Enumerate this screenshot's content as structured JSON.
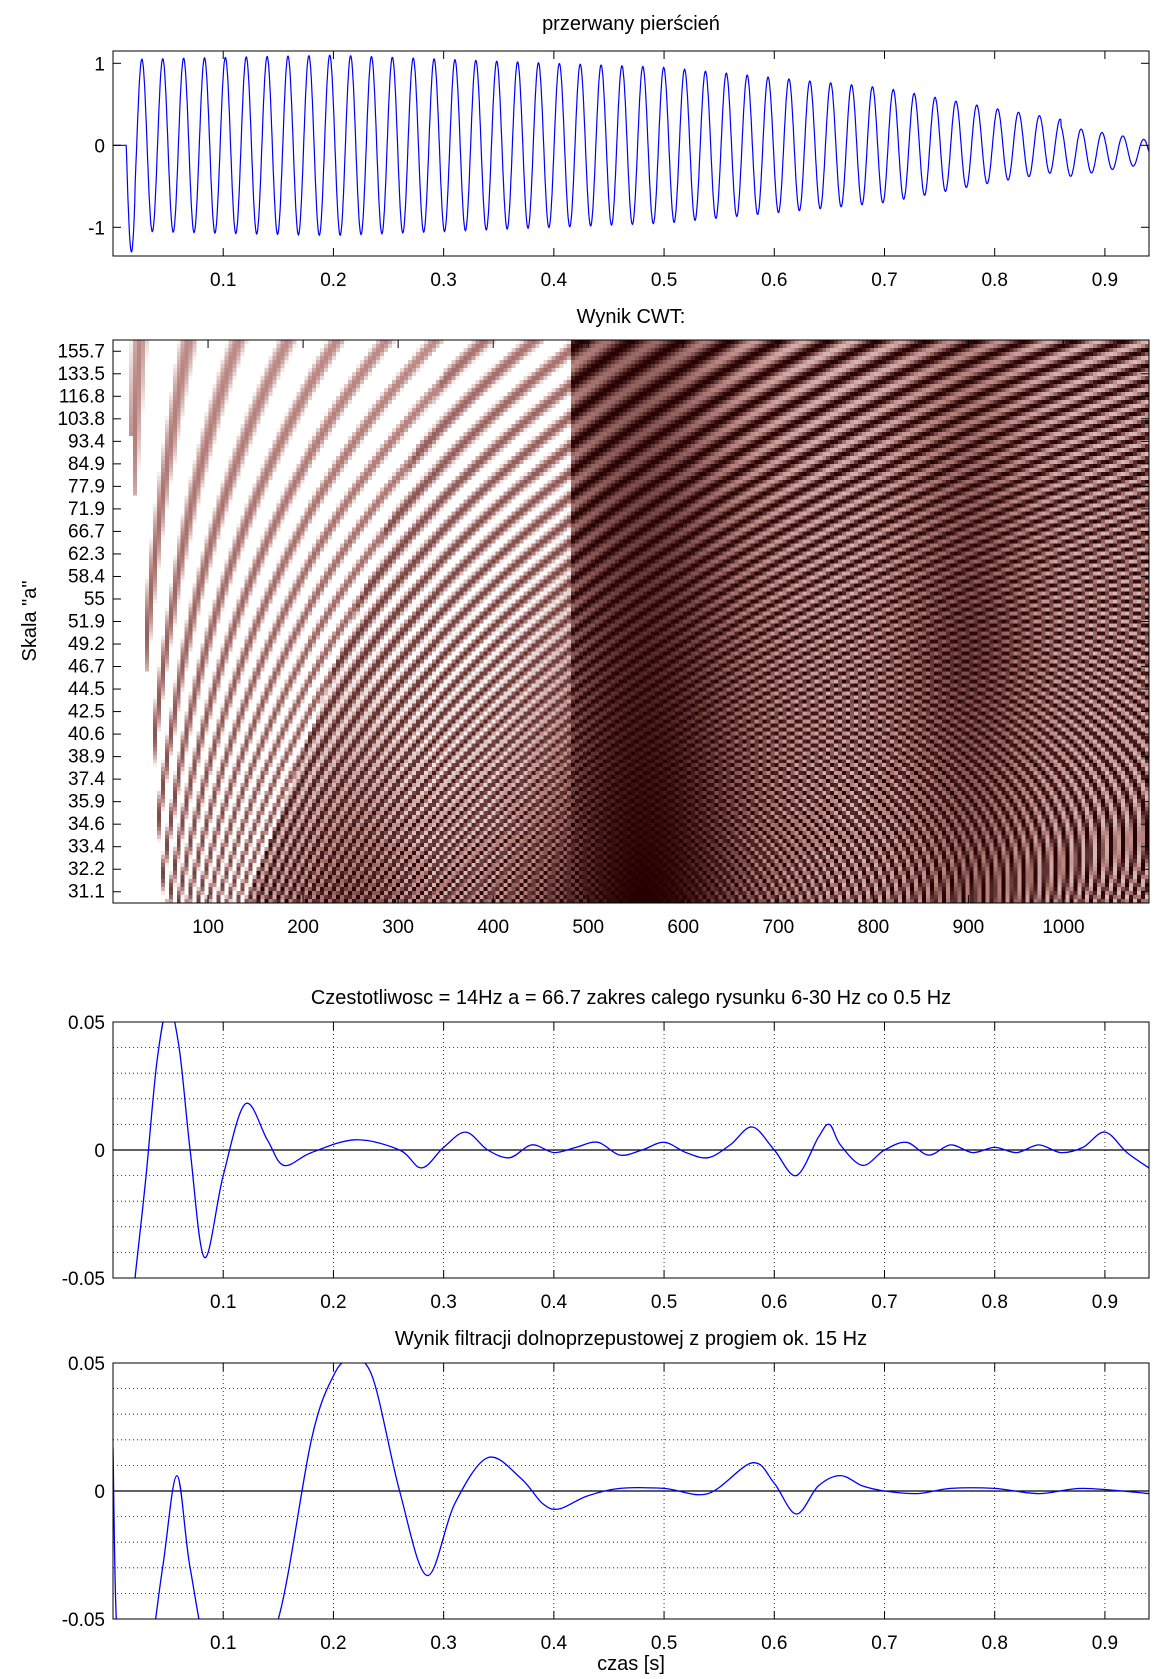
{
  "chart_data": [
    {
      "type": "line",
      "title": "przerwany pierścień",
      "xlabel": "",
      "ylabel": "",
      "xlim": [
        0.0,
        0.94
      ],
      "ylim": [
        -1.35,
        1.15
      ],
      "xticks": [
        0.1,
        0.2,
        0.3,
        0.4,
        0.5,
        0.6,
        0.7,
        0.8,
        0.9
      ],
      "xtick_labels": [
        "0.1",
        "0.2",
        "0.3",
        "0.4",
        "0.5",
        "0.6",
        "0.7",
        "0.8",
        "0.9"
      ],
      "yticks": [
        1,
        0,
        -1
      ],
      "ytick_labels": [
        "1",
        "0",
        "-1"
      ],
      "grid": false,
      "line_color": "#0000ff",
      "signal": {
        "description_points": [
          [
            0.0,
            0.0
          ],
          [
            0.01,
            0.0
          ],
          [
            0.015,
            -1.3
          ],
          [
            0.025,
            1.05
          ],
          [
            0.2,
            1.1
          ],
          [
            0.5,
            0.95
          ],
          [
            0.7,
            0.7
          ],
          [
            0.8,
            0.45
          ],
          [
            0.9,
            0.25
          ],
          [
            0.94,
            -0.1
          ]
        ],
        "cycles_in_range": 49
      }
    },
    {
      "type": "heatmap",
      "title": "Wynik CWT:",
      "xlabel": "",
      "ylabel": "Skala \"a\"",
      "xlim": [
        0,
        1090
      ],
      "xticks": [
        100,
        200,
        300,
        400,
        500,
        600,
        700,
        800,
        900,
        1000
      ],
      "xtick_labels": [
        "100",
        "200",
        "300",
        "400",
        "500",
        "600",
        "700",
        "800",
        "900",
        "1000"
      ],
      "ytick_labels": [
        "155.7",
        "133.5",
        "116.8",
        "103.8",
        "93.4",
        "84.9",
        "77.9",
        "71.9",
        "66.7",
        "62.3",
        "58.4",
        "55",
        "51.9",
        "49.2",
        "46.7",
        "44.5",
        "42.5",
        "40.6",
        "38.9",
        "37.4",
        "35.9",
        "34.6",
        "33.4",
        "32.2",
        "31.1"
      ],
      "colormap": "pink",
      "colors": {
        "dark": "#260000",
        "mid": "#b88480",
        "light": "#ffffff"
      }
    },
    {
      "type": "line",
      "title": "Czestotliwosc = 14Hz  a = 66.7 zakres calego rysunku 6-30 Hz co 0.5 Hz",
      "xlabel": "",
      "ylabel": "",
      "xlim": [
        0.0,
        0.94
      ],
      "ylim": [
        -0.05,
        0.05
      ],
      "xticks": [
        0.1,
        0.2,
        0.3,
        0.4,
        0.5,
        0.6,
        0.7,
        0.8,
        0.9
      ],
      "xtick_labels": [
        "0.1",
        "0.2",
        "0.3",
        "0.4",
        "0.5",
        "0.6",
        "0.7",
        "0.8",
        "0.9"
      ],
      "yticks": [
        0.05,
        0,
        -0.05
      ],
      "ytick_labels": [
        "0.05",
        "0",
        "-0.05"
      ],
      "grid": true,
      "line_color": "#0000ff",
      "zero_line_color": "#000000",
      "x": [
        0.02,
        0.03,
        0.04,
        0.05,
        0.06,
        0.07,
        0.083,
        0.1,
        0.12,
        0.14,
        0.155,
        0.18,
        0.22,
        0.26,
        0.28,
        0.3,
        0.32,
        0.34,
        0.36,
        0.38,
        0.4,
        0.42,
        0.44,
        0.46,
        0.48,
        0.5,
        0.52,
        0.54,
        0.56,
        0.58,
        0.6,
        0.62,
        0.64,
        0.65,
        0.66,
        0.68,
        0.7,
        0.72,
        0.74,
        0.76,
        0.78,
        0.8,
        0.82,
        0.84,
        0.86,
        0.88,
        0.9,
        0.92,
        0.94
      ],
      "y": [
        -0.05,
        -0.01,
        0.035,
        0.056,
        0.04,
        0.0,
        -0.042,
        -0.01,
        0.018,
        0.004,
        -0.006,
        -0.001,
        0.004,
        0.0,
        -0.007,
        0.001,
        0.007,
        0.0,
        -0.003,
        0.002,
        -0.001,
        0.001,
        0.003,
        -0.002,
        0.0,
        0.003,
        -0.001,
        -0.003,
        0.002,
        0.009,
        0.0,
        -0.01,
        0.005,
        0.01,
        0.002,
        -0.006,
        0.0,
        0.003,
        -0.002,
        0.002,
        -0.001,
        0.001,
        -0.001,
        0.002,
        -0.001,
        0.001,
        0.007,
        -0.001,
        -0.007
      ]
    },
    {
      "type": "line",
      "title": "Wynik filtracji dolnoprzepustowej z progiem ok. 15 Hz",
      "xlabel": "czas [s]",
      "ylabel": "",
      "xlim": [
        0.0,
        0.94
      ],
      "ylim": [
        -0.05,
        0.05
      ],
      "xticks": [
        0.1,
        0.2,
        0.3,
        0.4,
        0.5,
        0.6,
        0.7,
        0.8,
        0.9
      ],
      "xtick_labels": [
        "0.1",
        "0.2",
        "0.3",
        "0.4",
        "0.5",
        "0.6",
        "0.7",
        "0.8",
        "0.9"
      ],
      "yticks": [
        0.05,
        0,
        -0.05
      ],
      "ytick_labels": [
        "0.05",
        "0",
        "-0.05"
      ],
      "grid": true,
      "line_color": "#0000ff",
      "zero_line_color": "#000000",
      "x": [
        0.0,
        0.003,
        0.01,
        0.03,
        0.045,
        0.058,
        0.07,
        0.09,
        0.12,
        0.15,
        0.18,
        0.2,
        0.215,
        0.235,
        0.26,
        0.285,
        0.31,
        0.34,
        0.37,
        0.39,
        0.405,
        0.43,
        0.46,
        0.5,
        0.54,
        0.58,
        0.6,
        0.62,
        0.64,
        0.66,
        0.68,
        0.7,
        0.73,
        0.76,
        0.8,
        0.84,
        0.88,
        0.94
      ],
      "y": [
        0.017,
        -0.05,
        -0.07,
        -0.07,
        -0.03,
        0.006,
        -0.03,
        -0.07,
        -0.07,
        -0.05,
        0.02,
        0.045,
        0.051,
        0.045,
        0.0,
        -0.033,
        -0.005,
        0.013,
        0.005,
        -0.005,
        -0.007,
        -0.002,
        0.001,
        0.001,
        -0.001,
        0.011,
        0.003,
        -0.009,
        0.002,
        0.006,
        0.002,
        0.0,
        -0.001,
        0.001,
        0.001,
        -0.001,
        0.001,
        -0.001
      ]
    }
  ]
}
